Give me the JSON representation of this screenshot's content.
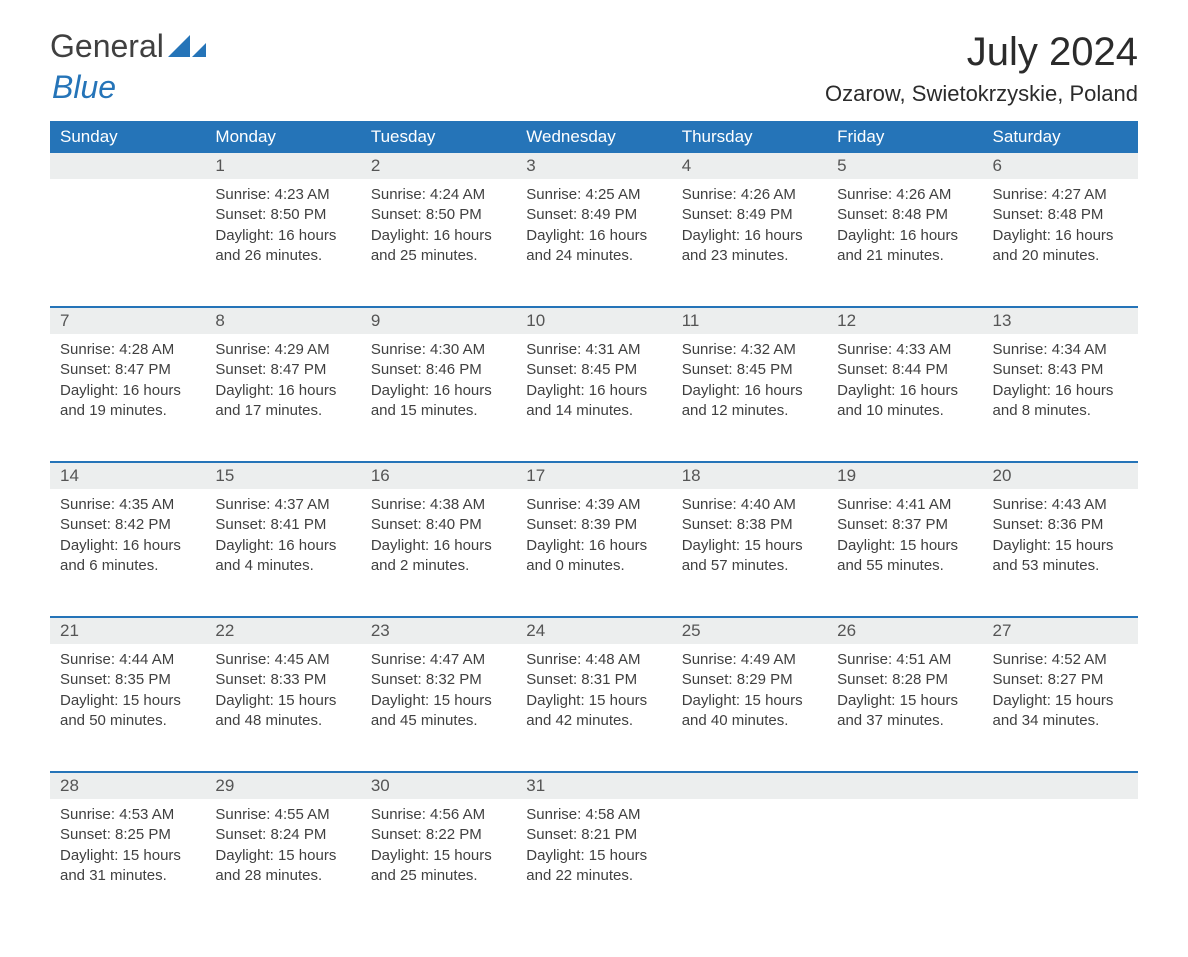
{
  "logo": {
    "general": "General",
    "blue": "Blue"
  },
  "title": "July 2024",
  "location": "Ozarow, Swietokrzyskie, Poland",
  "colors": {
    "header_bg": "#2574b8",
    "header_text": "#ffffff",
    "daynum_bg": "#eceeee",
    "row_border": "#2574b8",
    "body_text": "#404040",
    "logo_blue": "#2574b8"
  },
  "day_headers": [
    "Sunday",
    "Monday",
    "Tuesday",
    "Wednesday",
    "Thursday",
    "Friday",
    "Saturday"
  ],
  "weeks": [
    [
      null,
      {
        "n": "1",
        "sr": "4:23 AM",
        "ss": "8:50 PM",
        "dl": "16 hours and 26 minutes."
      },
      {
        "n": "2",
        "sr": "4:24 AM",
        "ss": "8:50 PM",
        "dl": "16 hours and 25 minutes."
      },
      {
        "n": "3",
        "sr": "4:25 AM",
        "ss": "8:49 PM",
        "dl": "16 hours and 24 minutes."
      },
      {
        "n": "4",
        "sr": "4:26 AM",
        "ss": "8:49 PM",
        "dl": "16 hours and 23 minutes."
      },
      {
        "n": "5",
        "sr": "4:26 AM",
        "ss": "8:48 PM",
        "dl": "16 hours and 21 minutes."
      },
      {
        "n": "6",
        "sr": "4:27 AM",
        "ss": "8:48 PM",
        "dl": "16 hours and 20 minutes."
      }
    ],
    [
      {
        "n": "7",
        "sr": "4:28 AM",
        "ss": "8:47 PM",
        "dl": "16 hours and 19 minutes."
      },
      {
        "n": "8",
        "sr": "4:29 AM",
        "ss": "8:47 PM",
        "dl": "16 hours and 17 minutes."
      },
      {
        "n": "9",
        "sr": "4:30 AM",
        "ss": "8:46 PM",
        "dl": "16 hours and 15 minutes."
      },
      {
        "n": "10",
        "sr": "4:31 AM",
        "ss": "8:45 PM",
        "dl": "16 hours and 14 minutes."
      },
      {
        "n": "11",
        "sr": "4:32 AM",
        "ss": "8:45 PM",
        "dl": "16 hours and 12 minutes."
      },
      {
        "n": "12",
        "sr": "4:33 AM",
        "ss": "8:44 PM",
        "dl": "16 hours and 10 minutes."
      },
      {
        "n": "13",
        "sr": "4:34 AM",
        "ss": "8:43 PM",
        "dl": "16 hours and 8 minutes."
      }
    ],
    [
      {
        "n": "14",
        "sr": "4:35 AM",
        "ss": "8:42 PM",
        "dl": "16 hours and 6 minutes."
      },
      {
        "n": "15",
        "sr": "4:37 AM",
        "ss": "8:41 PM",
        "dl": "16 hours and 4 minutes."
      },
      {
        "n": "16",
        "sr": "4:38 AM",
        "ss": "8:40 PM",
        "dl": "16 hours and 2 minutes."
      },
      {
        "n": "17",
        "sr": "4:39 AM",
        "ss": "8:39 PM",
        "dl": "16 hours and 0 minutes."
      },
      {
        "n": "18",
        "sr": "4:40 AM",
        "ss": "8:38 PM",
        "dl": "15 hours and 57 minutes."
      },
      {
        "n": "19",
        "sr": "4:41 AM",
        "ss": "8:37 PM",
        "dl": "15 hours and 55 minutes."
      },
      {
        "n": "20",
        "sr": "4:43 AM",
        "ss": "8:36 PM",
        "dl": "15 hours and 53 minutes."
      }
    ],
    [
      {
        "n": "21",
        "sr": "4:44 AM",
        "ss": "8:35 PM",
        "dl": "15 hours and 50 minutes."
      },
      {
        "n": "22",
        "sr": "4:45 AM",
        "ss": "8:33 PM",
        "dl": "15 hours and 48 minutes."
      },
      {
        "n": "23",
        "sr": "4:47 AM",
        "ss": "8:32 PM",
        "dl": "15 hours and 45 minutes."
      },
      {
        "n": "24",
        "sr": "4:48 AM",
        "ss": "8:31 PM",
        "dl": "15 hours and 42 minutes."
      },
      {
        "n": "25",
        "sr": "4:49 AM",
        "ss": "8:29 PM",
        "dl": "15 hours and 40 minutes."
      },
      {
        "n": "26",
        "sr": "4:51 AM",
        "ss": "8:28 PM",
        "dl": "15 hours and 37 minutes."
      },
      {
        "n": "27",
        "sr": "4:52 AM",
        "ss": "8:27 PM",
        "dl": "15 hours and 34 minutes."
      }
    ],
    [
      {
        "n": "28",
        "sr": "4:53 AM",
        "ss": "8:25 PM",
        "dl": "15 hours and 31 minutes."
      },
      {
        "n": "29",
        "sr": "4:55 AM",
        "ss": "8:24 PM",
        "dl": "15 hours and 28 minutes."
      },
      {
        "n": "30",
        "sr": "4:56 AM",
        "ss": "8:22 PM",
        "dl": "15 hours and 25 minutes."
      },
      {
        "n": "31",
        "sr": "4:58 AM",
        "ss": "8:21 PM",
        "dl": "15 hours and 22 minutes."
      },
      null,
      null,
      null
    ]
  ],
  "labels": {
    "sunrise": "Sunrise: ",
    "sunset": "Sunset: ",
    "daylight": "Daylight: "
  }
}
